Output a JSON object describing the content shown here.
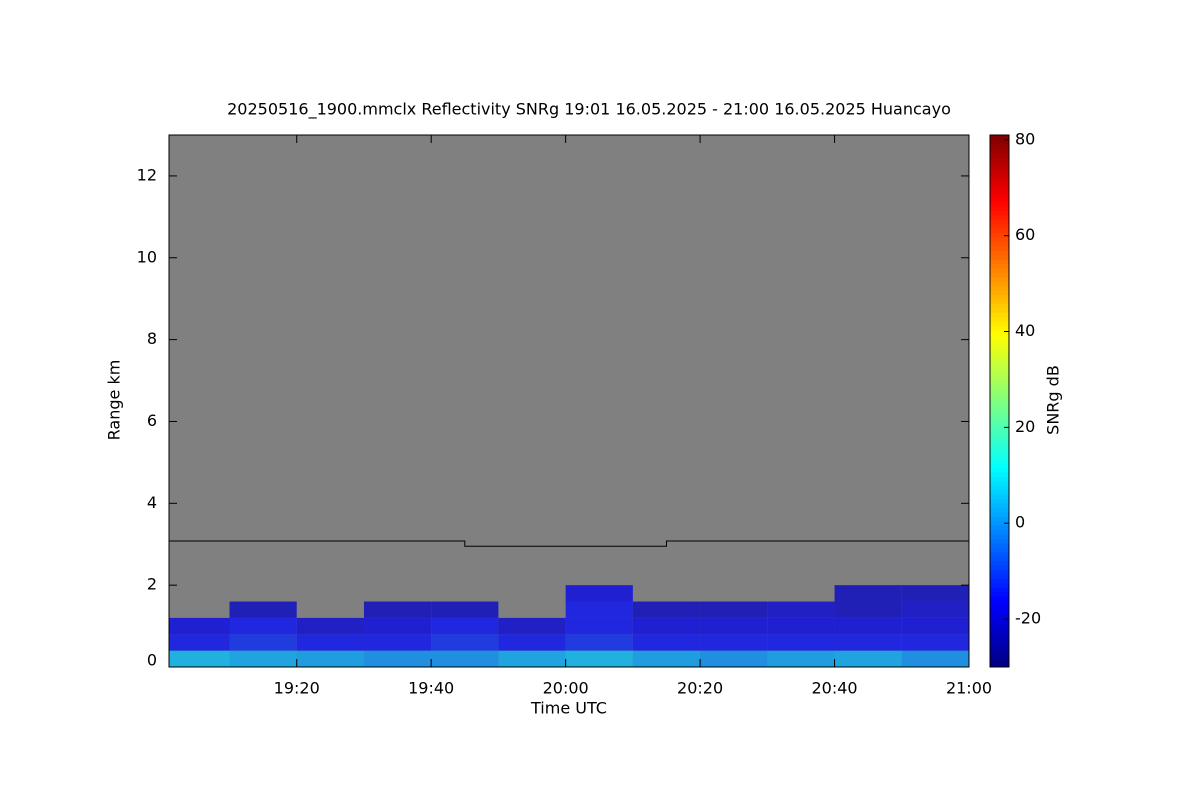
{
  "chart_data": {
    "type": "heatmap",
    "title": "20250516_1900.mmclx Reflectivity SNRg   19:01 16.05.2025 - 21:00 16.05.2025 Huancayo",
    "x_label": "Time UTC",
    "y_label": "Range km",
    "colorbar_label": "SNRg dB",
    "background": "#808080",
    "xlim": [
      "19:01",
      "21:00"
    ],
    "xticks": [
      "19:20",
      "19:40",
      "20:00",
      "20:20",
      "20:40",
      "21:00"
    ],
    "ylim": [
      0,
      13
    ],
    "yticks": [
      0,
      2,
      4,
      6,
      8,
      10,
      12
    ],
    "zlim": [
      -30,
      81
    ],
    "zticks": [
      -20,
      0,
      20,
      40,
      60,
      80
    ],
    "colormap": "jet",
    "x_bins": [
      "19:01",
      "19:10",
      "19:20",
      "19:30",
      "19:40",
      "19:50",
      "20:00",
      "20:10",
      "20:20",
      "20:30",
      "20:40",
      "20:50",
      "21:00"
    ],
    "y_bins": [
      0,
      0.4,
      0.8,
      1.2,
      1.6,
      2.0
    ],
    "z": [
      [
        5,
        3,
        2,
        0,
        0,
        3,
        5,
        2,
        0,
        2,
        3,
        0
      ],
      [
        -15,
        -12,
        -15,
        -15,
        -12,
        -15,
        -12,
        -15,
        -15,
        -15,
        -15,
        -15
      ],
      [
        -18,
        -15,
        -20,
        -18,
        -15,
        -20,
        -15,
        -18,
        -18,
        -18,
        -18,
        -18
      ],
      [
        null,
        -22,
        null,
        -22,
        -22,
        null,
        -15,
        -22,
        -22,
        -20,
        -22,
        -20
      ],
      [
        null,
        null,
        null,
        null,
        null,
        null,
        -18,
        null,
        null,
        null,
        -22,
        -22
      ]
    ],
    "series": [
      {
        "color": "#000000",
        "x": [
          "19:01",
          "19:45",
          "19:45",
          "20:15",
          "20:15",
          "21:00"
        ],
        "values": [
          3.08,
          3.08,
          2.95,
          2.95,
          3.08,
          3.08
        ]
      }
    ]
  }
}
